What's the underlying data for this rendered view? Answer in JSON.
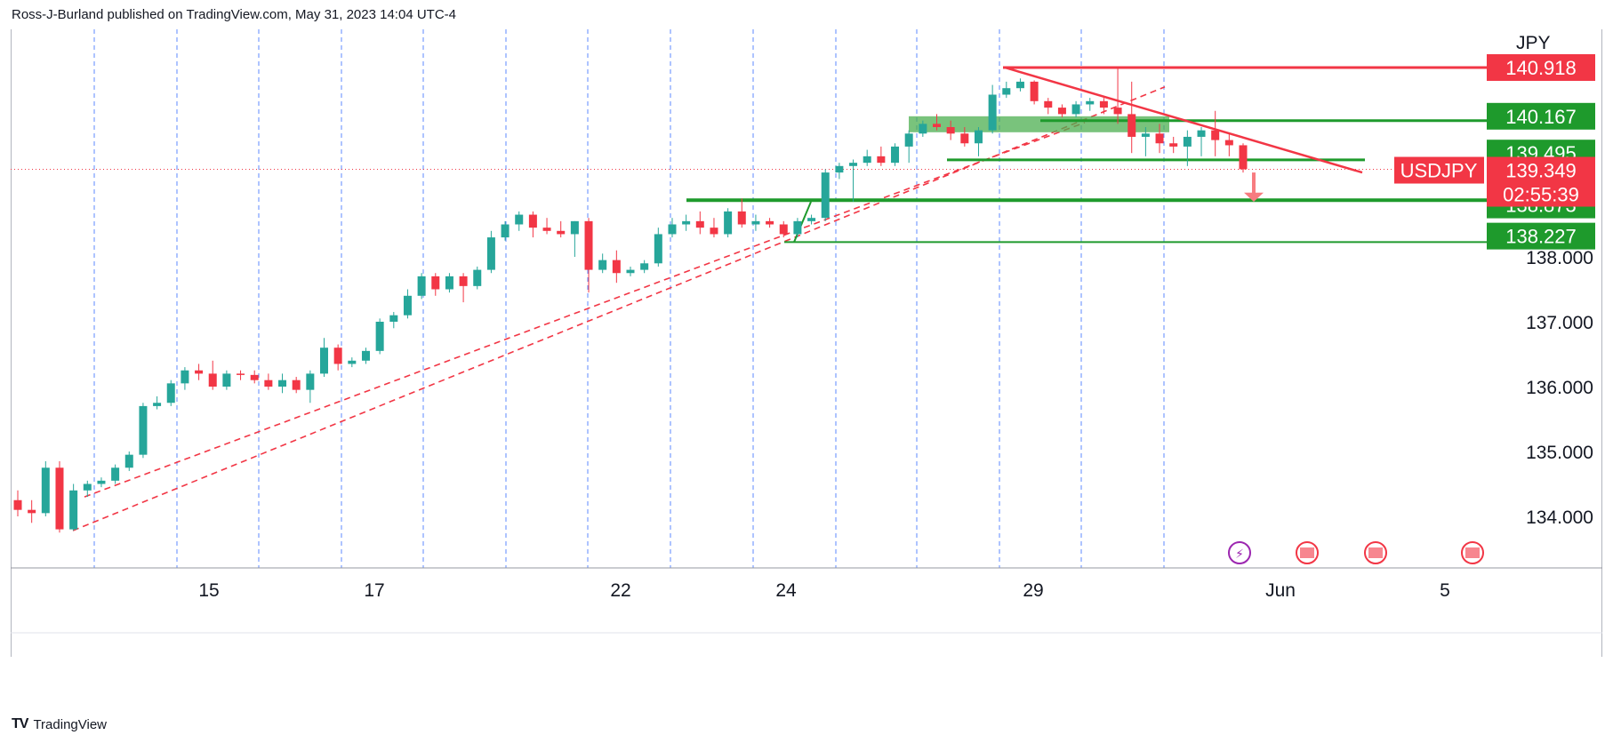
{
  "header": {
    "text": "Ross-J-Burland published on TradingView.com, May 31, 2023 14:04 UTC-4"
  },
  "footer": {
    "brand": "TradingView"
  },
  "colors": {
    "up": "#26a69a",
    "down": "#f23645",
    "zone_green": "#1e9a2c",
    "zone_fill": "#4caf50",
    "red_line": "#f23645",
    "grid": "#2962ff",
    "arrow": "#f77c80"
  },
  "chart_data": {
    "type": "candlestick",
    "symbol": "USDJPY",
    "currency_label": "JPY",
    "x_labels": [
      "15",
      "17",
      "22",
      "24",
      "29",
      "Jun",
      "5"
    ],
    "y_ticks": [
      "134.000",
      "135.000",
      "136.000",
      "137.000",
      "138.000"
    ],
    "ylim": [
      133.2,
      141.6
    ],
    "price_badges": [
      {
        "label": "140.918",
        "color": "#f23645"
      },
      {
        "label": "140.167",
        "color": "#1e9a2c"
      },
      {
        "label": "139.495",
        "color": "#1e9a2c"
      },
      {
        "label": "139.349",
        "color": "#f23645",
        "symbol": "USDJPY",
        "countdown": "02:55:39"
      },
      {
        "label": "138.873",
        "color": "#1e9a2c"
      },
      {
        "label": "138.227",
        "color": "#1e9a2c"
      }
    ],
    "levels": {
      "resistance": 140.918,
      "zone_top": 140.167,
      "level_1": 139.495,
      "current": 139.349,
      "level_2": 138.873,
      "level_3": 138.227
    },
    "candles": [
      [
        134.25,
        134.4,
        134.0,
        134.1
      ],
      [
        134.1,
        134.25,
        133.9,
        134.05
      ],
      [
        134.05,
        134.85,
        134.0,
        134.75
      ],
      [
        134.75,
        134.85,
        133.75,
        133.8
      ],
      [
        133.8,
        134.5,
        133.78,
        134.4
      ],
      [
        134.4,
        134.55,
        134.3,
        134.5
      ],
      [
        134.5,
        134.6,
        134.45,
        134.55
      ],
      [
        134.55,
        134.8,
        134.5,
        134.75
      ],
      [
        134.75,
        135.0,
        134.7,
        134.95
      ],
      [
        134.95,
        135.75,
        134.9,
        135.7
      ],
      [
        135.7,
        135.85,
        135.65,
        135.75
      ],
      [
        135.75,
        136.1,
        135.7,
        136.05
      ],
      [
        136.05,
        136.3,
        135.95,
        136.25
      ],
      [
        136.25,
        136.35,
        136.1,
        136.2
      ],
      [
        136.2,
        136.4,
        135.95,
        136.0
      ],
      [
        136.0,
        136.25,
        135.95,
        136.2
      ],
      [
        136.2,
        136.25,
        136.1,
        136.18
      ],
      [
        136.18,
        136.25,
        136.05,
        136.1
      ],
      [
        136.1,
        136.2,
        135.95,
        136.0
      ],
      [
        136.0,
        136.2,
        135.9,
        136.1
      ],
      [
        136.1,
        136.15,
        135.9,
        135.95
      ],
      [
        135.95,
        136.25,
        135.75,
        136.2
      ],
      [
        136.2,
        136.75,
        136.15,
        136.6
      ],
      [
        136.6,
        136.65,
        136.25,
        136.35
      ],
      [
        136.35,
        136.45,
        136.3,
        136.4
      ],
      [
        136.4,
        136.6,
        136.35,
        136.55
      ],
      [
        136.55,
        137.05,
        136.5,
        137.0
      ],
      [
        137.0,
        137.15,
        136.9,
        137.1
      ],
      [
        137.1,
        137.5,
        137.05,
        137.4
      ],
      [
        137.4,
        137.75,
        137.35,
        137.7
      ],
      [
        137.7,
        137.75,
        137.4,
        137.5
      ],
      [
        137.5,
        137.75,
        137.45,
        137.7
      ],
      [
        137.7,
        137.75,
        137.3,
        137.55
      ],
      [
        137.55,
        137.85,
        137.5,
        137.8
      ],
      [
        137.8,
        138.4,
        137.75,
        138.3
      ],
      [
        138.3,
        138.55,
        138.25,
        138.5
      ],
      [
        138.5,
        138.7,
        138.4,
        138.65
      ],
      [
        138.65,
        138.7,
        138.3,
        138.45
      ],
      [
        138.45,
        138.6,
        138.35,
        138.4
      ],
      [
        138.4,
        138.55,
        138.3,
        138.35
      ],
      [
        138.35,
        138.55,
        138.0,
        138.55
      ],
      [
        138.55,
        138.6,
        137.45,
        137.8
      ],
      [
        137.8,
        138.05,
        137.75,
        137.95
      ],
      [
        137.95,
        138.1,
        137.6,
        137.75
      ],
      [
        137.75,
        137.85,
        137.7,
        137.8
      ],
      [
        137.8,
        137.95,
        137.75,
        137.9
      ],
      [
        137.9,
        138.45,
        137.85,
        138.35
      ],
      [
        138.35,
        138.6,
        138.3,
        138.5
      ],
      [
        138.5,
        138.65,
        138.4,
        138.55
      ],
      [
        138.55,
        138.7,
        138.35,
        138.45
      ],
      [
        138.45,
        138.6,
        138.3,
        138.35
      ],
      [
        138.35,
        138.75,
        138.3,
        138.7
      ],
      [
        138.7,
        138.9,
        138.45,
        138.5
      ],
      [
        138.5,
        138.65,
        138.4,
        138.55
      ],
      [
        138.55,
        138.6,
        138.45,
        138.5
      ],
      [
        138.5,
        138.55,
        138.3,
        138.35
      ],
      [
        138.35,
        138.6,
        138.3,
        138.55
      ],
      [
        138.55,
        138.65,
        138.5,
        138.6
      ],
      [
        138.6,
        139.35,
        138.55,
        139.3
      ],
      [
        139.3,
        139.45,
        139.2,
        139.4
      ],
      [
        139.4,
        139.5,
        138.85,
        139.45
      ],
      [
        139.45,
        139.65,
        139.4,
        139.55
      ],
      [
        139.55,
        139.7,
        139.4,
        139.45
      ],
      [
        139.45,
        139.75,
        139.4,
        139.7
      ],
      [
        139.7,
        139.95,
        139.45,
        139.9
      ],
      [
        139.9,
        140.1,
        139.85,
        140.05
      ],
      [
        140.05,
        140.2,
        139.95,
        140.0
      ],
      [
        140.0,
        140.1,
        139.8,
        139.9
      ],
      [
        139.9,
        140.0,
        139.7,
        139.75
      ],
      [
        139.75,
        140.0,
        139.55,
        139.95
      ],
      [
        139.95,
        140.65,
        139.9,
        140.5
      ],
      [
        140.5,
        140.7,
        140.45,
        140.6
      ],
      [
        140.6,
        140.75,
        140.55,
        140.7
      ],
      [
        140.7,
        140.72,
        140.35,
        140.4
      ],
      [
        140.4,
        140.45,
        140.2,
        140.3
      ],
      [
        140.3,
        140.35,
        140.15,
        140.2
      ],
      [
        140.2,
        140.4,
        140.15,
        140.35
      ],
      [
        140.35,
        140.45,
        140.25,
        140.4
      ],
      [
        140.4,
        140.45,
        140.2,
        140.3
      ],
      [
        140.3,
        140.9,
        140.05,
        140.2
      ],
      [
        140.2,
        140.7,
        139.6,
        139.85
      ],
      [
        139.85,
        140.0,
        139.55,
        139.9
      ],
      [
        139.9,
        140.05,
        139.6,
        139.75
      ],
      [
        139.75,
        139.85,
        139.6,
        139.7
      ],
      [
        139.7,
        139.95,
        139.4,
        139.85
      ],
      [
        139.85,
        140.0,
        139.55,
        139.95
      ],
      [
        139.95,
        140.25,
        139.55,
        139.8
      ],
      [
        139.8,
        139.9,
        139.55,
        139.72
      ],
      [
        139.72,
        139.75,
        139.3,
        139.35
      ]
    ]
  }
}
